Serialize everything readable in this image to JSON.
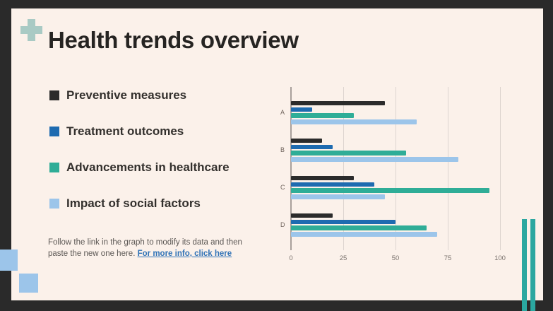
{
  "slide": {
    "title": "Health trends overview",
    "legend": [
      {
        "label": "Preventive measures",
        "color": "#2b2b2b"
      },
      {
        "label": "Treatment outcomes",
        "color": "#1e6bb0"
      },
      {
        "label": "Advancements in healthcare",
        "color": "#2fad97"
      },
      {
        "label": "Impact of social factors",
        "color": "#9cc5ea"
      }
    ],
    "footer": {
      "text": "Follow the link in the graph to modify its data and then paste the new one here.",
      "link_label": "For more info, click here"
    }
  },
  "chart_data": {
    "type": "bar",
    "orientation": "horizontal",
    "categories": [
      "A",
      "B",
      "C",
      "D"
    ],
    "series": [
      {
        "name": "Preventive measures",
        "color": "#2b2b2b",
        "values": [
          45,
          15,
          30,
          20
        ]
      },
      {
        "name": "Treatment outcomes",
        "color": "#1e6bb0",
        "values": [
          10,
          20,
          40,
          50
        ]
      },
      {
        "name": "Advancements in healthcare",
        "color": "#2fad97",
        "values": [
          30,
          55,
          95,
          65
        ]
      },
      {
        "name": "Impact of social factors",
        "color": "#9cc5ea",
        "values": [
          60,
          80,
          45,
          70
        ]
      }
    ],
    "xlim": [
      0,
      100
    ],
    "xticks": [
      0,
      25,
      50,
      75,
      100
    ],
    "grid": true,
    "legend_position": "left-panel",
    "title": "",
    "xlabel": "",
    "ylabel": ""
  },
  "colors": {
    "frame": "#2a2a2a",
    "canvas": "#fbf1ea",
    "cross": "#a9cac4",
    "deco_teal": "#2ba7a0",
    "deco_blue": "#9cc5ea",
    "link": "#3173b7"
  }
}
